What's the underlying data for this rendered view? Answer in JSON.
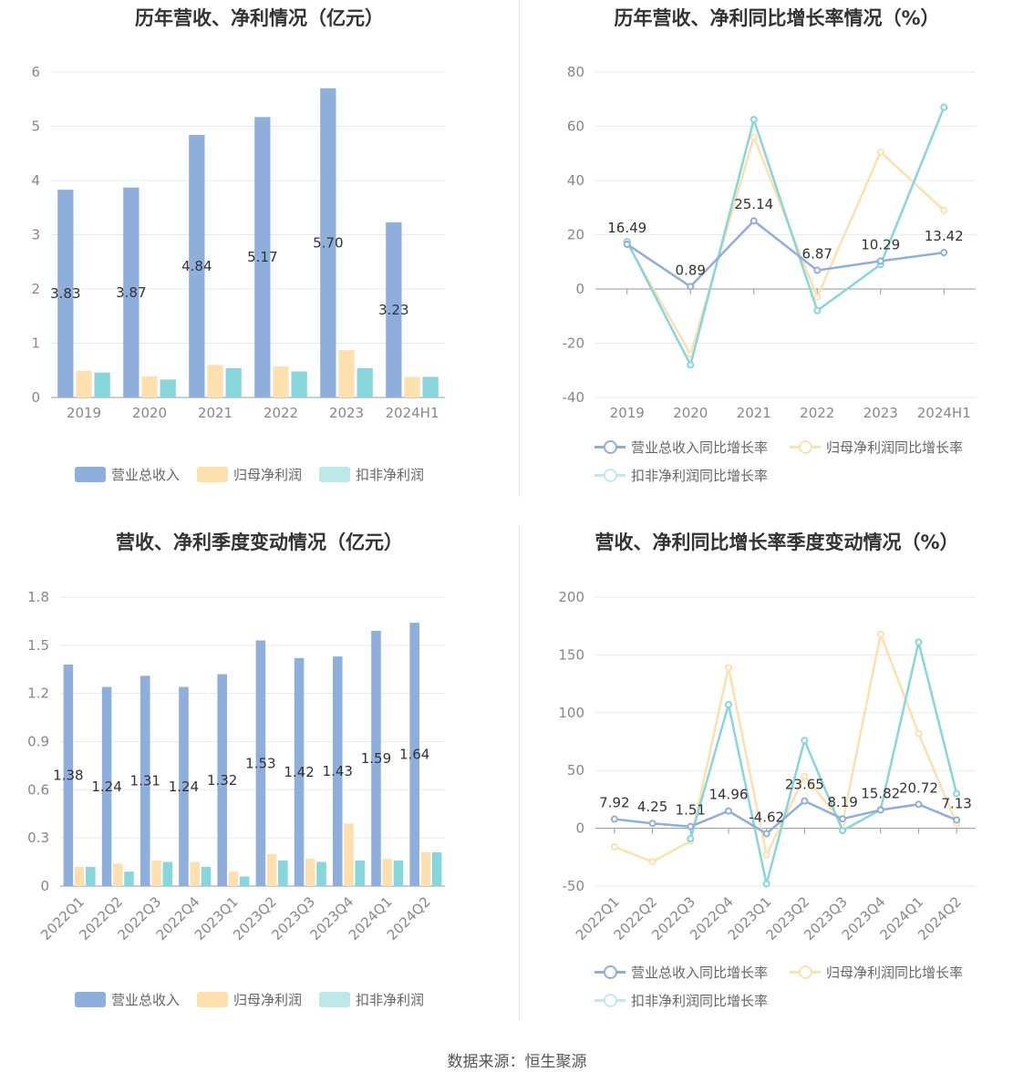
{
  "colors": {
    "revenue": "#8eaedc",
    "net_profit": "#fee0ae",
    "deducted_profit": "#87d6db"
  },
  "source_text": "数据来源：恒生聚源",
  "legend": {
    "bar": [
      "营业总收入",
      "归母净利润",
      "扣非净利润"
    ],
    "line": [
      "营业总收入同比增长率",
      "归母净利润同比增长率",
      "扣非净利润同比增长率"
    ]
  },
  "chart_data": [
    {
      "id": "annual-amount",
      "type": "bar",
      "title": "历年营收、净利情况（亿元）",
      "categories": [
        "2019",
        "2020",
        "2021",
        "2022",
        "2023",
        "2024H1"
      ],
      "ylim": [
        0,
        6
      ],
      "yticks": [
        "0",
        "1",
        "2",
        "3",
        "4",
        "5",
        "6"
      ],
      "grid": true,
      "legend_position": "bottom",
      "series": [
        {
          "name": "营业总收入",
          "color": "#8eaedc",
          "values": [
            3.83,
            3.87,
            4.84,
            5.17,
            5.7,
            3.23
          ],
          "labels": [
            "3.83",
            "3.87",
            "4.84",
            "5.17",
            "5.70",
            "3.23"
          ]
        },
        {
          "name": "归母净利润",
          "color": "#fee0ae",
          "values": [
            0.49,
            0.39,
            0.6,
            0.57,
            0.87,
            0.38
          ]
        },
        {
          "name": "扣非净利润",
          "color": "#87d6db",
          "values": [
            0.46,
            0.33,
            0.54,
            0.48,
            0.54,
            0.38
          ]
        }
      ]
    },
    {
      "id": "annual-growth",
      "type": "line",
      "title": "历年营收、净利同比增长率情况（%）",
      "categories": [
        "2019",
        "2020",
        "2021",
        "2022",
        "2023",
        "2024H1"
      ],
      "ylim": [
        -40,
        80
      ],
      "yticks": [
        "-40",
        "-20",
        "0",
        "20",
        "40",
        "60",
        "80"
      ],
      "grid": true,
      "legend_position": "bottom",
      "series": [
        {
          "name": "营业总收入同比增长率",
          "color": "#8eaedc",
          "values": [
            16.49,
            0.89,
            25.14,
            6.87,
            10.29,
            13.42
          ],
          "labels": [
            "16.49",
            "0.89",
            "25.14",
            "6.87",
            "10.29",
            "13.42"
          ]
        },
        {
          "name": "归母净利润同比增长率",
          "color": "#fee0ae",
          "values": [
            17.0,
            -24.0,
            56.0,
            -3.0,
            50.5,
            29.0
          ]
        },
        {
          "name": "扣非净利润同比增长率",
          "color": "#87d6db",
          "values": [
            17.5,
            -28.0,
            62.5,
            -8.0,
            9.0,
            67.0
          ]
        }
      ]
    },
    {
      "id": "quarterly-amount",
      "type": "bar",
      "title": "营收、净利季度变动情况（亿元）",
      "categories": [
        "2022Q1",
        "2022Q2",
        "2022Q3",
        "2022Q4",
        "2023Q1",
        "2023Q2",
        "2023Q3",
        "2023Q4",
        "2024Q1",
        "2024Q2"
      ],
      "ylim": [
        0,
        1.8
      ],
      "yticks": [
        "0",
        "0.3",
        "0.6",
        "0.9",
        "1.2",
        "1.5",
        "1.8"
      ],
      "grid": true,
      "legend_position": "bottom",
      "series": [
        {
          "name": "营业总收入",
          "color": "#8eaedc",
          "values": [
            1.38,
            1.24,
            1.31,
            1.24,
            1.32,
            1.53,
            1.42,
            1.43,
            1.59,
            1.64
          ],
          "labels": [
            "1.38",
            "1.24",
            "1.31",
            "1.24",
            "1.32",
            "1.53",
            "1.42",
            "1.43",
            "1.59",
            "1.64"
          ]
        },
        {
          "name": "归母净利润",
          "color": "#fee0ae",
          "values": [
            0.12,
            0.14,
            0.16,
            0.15,
            0.09,
            0.2,
            0.17,
            0.39,
            0.17,
            0.21
          ]
        },
        {
          "name": "扣非净利润",
          "color": "#87d6db",
          "values": [
            0.12,
            0.09,
            0.15,
            0.12,
            0.06,
            0.16,
            0.15,
            0.16,
            0.16,
            0.21
          ]
        }
      ]
    },
    {
      "id": "quarterly-growth",
      "type": "line",
      "title": "营收、净利同比增长率季度变动情况（%）",
      "categories": [
        "2022Q1",
        "2022Q2",
        "2022Q3",
        "2022Q4",
        "2023Q1",
        "2023Q2",
        "2023Q3",
        "2023Q4",
        "2024Q1",
        "2024Q2"
      ],
      "ylim": [
        -50,
        200
      ],
      "yticks": [
        "-50",
        "0",
        "50",
        "100",
        "150",
        "200"
      ],
      "grid": true,
      "legend_position": "bottom",
      "series": [
        {
          "name": "营业总收入同比增长率",
          "color": "#8eaedc",
          "values": [
            7.92,
            4.25,
            1.51,
            14.96,
            -4.62,
            23.65,
            8.19,
            15.82,
            20.72,
            7.13
          ],
          "labels": [
            "7.92",
            "4.25",
            "1.51",
            "14.96",
            "-4.62",
            "23.65",
            "8.19",
            "15.82",
            "20.72",
            "7.13"
          ]
        },
        {
          "name": "归母净利润同比增长率",
          "color": "#fee0ae",
          "values": [
            -16.0,
            -29.0,
            -11.0,
            139.0,
            -23.0,
            45.0,
            5.0,
            168.0,
            82.0,
            4.0
          ]
        },
        {
          "name": "扣非净利润同比增长率",
          "color": "#87d6db",
          "values": [
            null,
            null,
            -9.0,
            107.0,
            -48.0,
            76.0,
            -2.0,
            16.0,
            161.0,
            30.0
          ]
        }
      ]
    }
  ]
}
